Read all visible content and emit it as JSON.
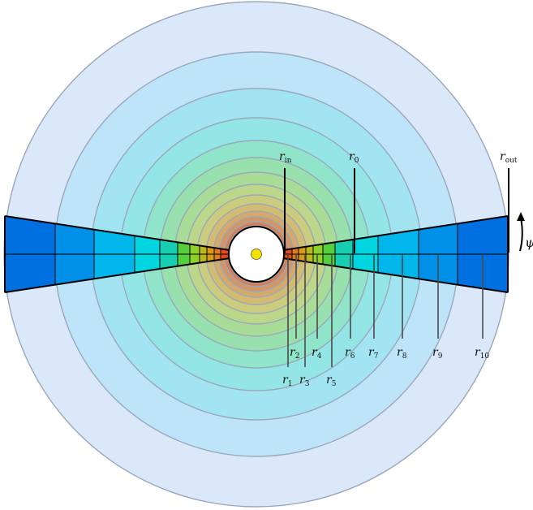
{
  "labels": {
    "r_in": {
      "base": "r",
      "sub": "in"
    },
    "r_0": {
      "base": "r",
      "sub": "0"
    },
    "r_out": {
      "base": "r",
      "sub": "out"
    },
    "psi": "ψ",
    "radii": [
      {
        "base": "r",
        "sub": "1"
      },
      {
        "base": "r",
        "sub": "2"
      },
      {
        "base": "r",
        "sub": "3"
      },
      {
        "base": "r",
        "sub": "4"
      },
      {
        "base": "r",
        "sub": "5"
      },
      {
        "base": "r",
        "sub": "6"
      },
      {
        "base": "r",
        "sub": "7"
      },
      {
        "base": "r",
        "sub": "8"
      },
      {
        "base": "r",
        "sub": "9"
      },
      {
        "base": "r",
        "sub": "10"
      }
    ]
  },
  "colors": {
    "star": "#f5e000",
    "ring_stroke": "#9aa8bb",
    "wedge_outline": "#000000",
    "wedge_cells": [
      "#e34a1e",
      "#e07a1c",
      "#d99a1a",
      "#b9b820",
      "#8fd02a",
      "#55cf3e",
      "#17cfb0",
      "#00d5e0",
      "#00b6ea",
      "#0090e8",
      "#0070e0"
    ],
    "shells": [
      "#dbe8fa",
      "#bde4f8",
      "#a3e4f2",
      "#93e6e5",
      "#8fe4c9",
      "#98e0ae",
      "#a9dc97",
      "#bcd68a",
      "#cbcc7e",
      "#d3bb72",
      "#d6a96a",
      "#d49562",
      "#d1805a",
      "#cd6a52"
    ]
  }
}
